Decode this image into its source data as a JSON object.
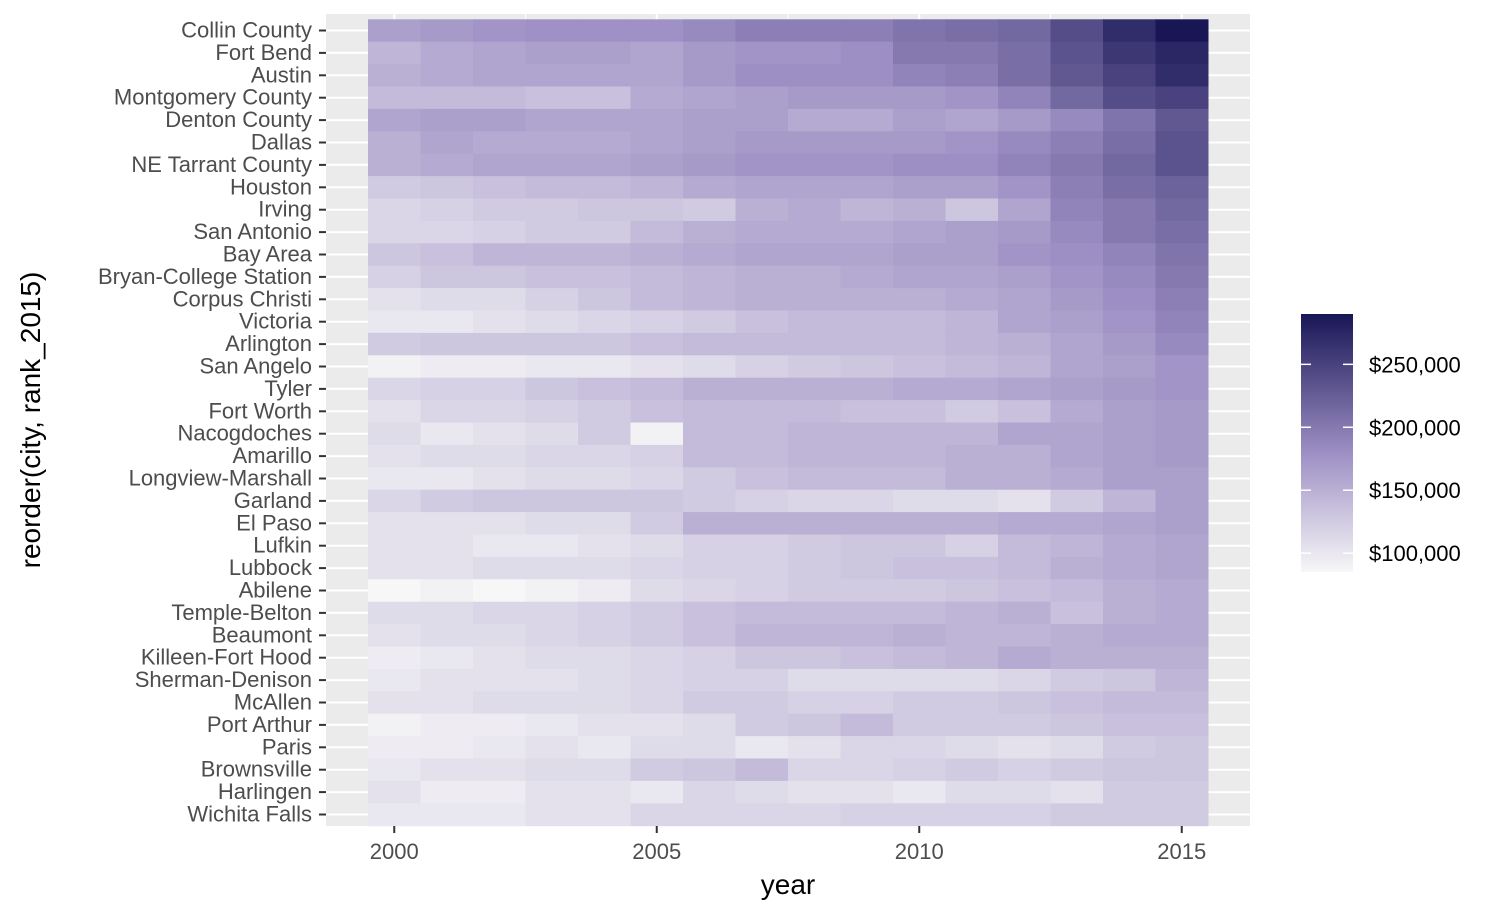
{
  "chart_data": {
    "type": "heatmap",
    "title": "",
    "xlabel": "year",
    "ylabel": "reorder(city, rank_2015)",
    "x": [
      2000,
      2001,
      2002,
      2003,
      2004,
      2005,
      2006,
      2007,
      2008,
      2009,
      2010,
      2011,
      2012,
      2013,
      2014,
      2015
    ],
    "x_ticks": [
      2000,
      2005,
      2010,
      2015
    ],
    "x_tick_labels": [
      "2000",
      "2005",
      "2010",
      "2015"
    ],
    "cities": [
      "Collin County",
      "Fort Bend",
      "Austin",
      "Montgomery County",
      "Denton County",
      "Dallas",
      "NE Tarrant County",
      "Houston",
      "Irving",
      "San Antonio",
      "Bay Area",
      "Bryan-College Station",
      "Corpus Christi",
      "Victoria",
      "Arlington",
      "San Angelo",
      "Tyler",
      "Fort Worth",
      "Nacogdoches",
      "Amarillo",
      "Longview-Marshall",
      "Garland",
      "El Paso",
      "Lufkin",
      "Lubbock",
      "Abilene",
      "Temple-Belton",
      "Beaumont",
      "Killeen-Fort Hood",
      "Sherman-Denison",
      "McAllen",
      "Port Arthur",
      "Paris",
      "Brownsville",
      "Harlingen",
      "Wichita Falls"
    ],
    "values": [
      [
        165,
        170,
        175,
        178,
        178,
        178,
        185,
        195,
        195,
        195,
        205,
        210,
        215,
        240,
        270,
        290
      ],
      [
        145,
        155,
        160,
        165,
        165,
        160,
        170,
        175,
        175,
        180,
        200,
        200,
        210,
        235,
        260,
        275
      ],
      [
        150,
        155,
        160,
        160,
        160,
        160,
        170,
        180,
        180,
        180,
        190,
        195,
        210,
        230,
        250,
        270
      ],
      [
        140,
        140,
        140,
        135,
        135,
        155,
        160,
        165,
        170,
        170,
        170,
        175,
        190,
        215,
        240,
        250
      ],
      [
        160,
        165,
        165,
        160,
        160,
        160,
        165,
        165,
        155,
        155,
        165,
        160,
        170,
        185,
        205,
        230
      ],
      [
        150,
        160,
        155,
        155,
        155,
        160,
        165,
        170,
        170,
        170,
        170,
        175,
        185,
        195,
        210,
        235
      ],
      [
        150,
        155,
        160,
        160,
        160,
        165,
        170,
        175,
        175,
        175,
        180,
        180,
        190,
        200,
        215,
        235
      ],
      [
        125,
        130,
        135,
        140,
        140,
        145,
        155,
        160,
        160,
        160,
        165,
        165,
        175,
        195,
        210,
        220
      ],
      [
        115,
        120,
        125,
        125,
        130,
        130,
        125,
        150,
        155,
        145,
        150,
        130,
        160,
        190,
        200,
        215
      ],
      [
        115,
        115,
        120,
        125,
        125,
        140,
        150,
        155,
        155,
        155,
        160,
        165,
        170,
        185,
        200,
        210
      ],
      [
        130,
        135,
        145,
        145,
        145,
        150,
        155,
        160,
        160,
        160,
        165,
        165,
        175,
        180,
        190,
        205
      ],
      [
        120,
        130,
        130,
        135,
        135,
        140,
        145,
        150,
        150,
        155,
        160,
        160,
        165,
        175,
        185,
        200
      ],
      [
        105,
        110,
        110,
        120,
        130,
        140,
        145,
        150,
        150,
        150,
        150,
        155,
        160,
        170,
        180,
        195
      ],
      [
        100,
        100,
        105,
        110,
        115,
        120,
        125,
        135,
        140,
        140,
        140,
        145,
        160,
        165,
        175,
        190
      ],
      [
        125,
        130,
        130,
        130,
        130,
        135,
        140,
        140,
        140,
        140,
        140,
        145,
        150,
        160,
        170,
        185
      ],
      [
        90,
        95,
        95,
        100,
        100,
        105,
        110,
        120,
        125,
        130,
        135,
        140,
        145,
        160,
        165,
        175
      ],
      [
        115,
        120,
        120,
        130,
        135,
        140,
        150,
        150,
        150,
        150,
        155,
        155,
        160,
        165,
        170,
        175
      ],
      [
        105,
        115,
        115,
        120,
        125,
        135,
        140,
        140,
        140,
        135,
        135,
        125,
        135,
        155,
        165,
        170
      ],
      [
        110,
        100,
        105,
        110,
        125,
        90,
        140,
        140,
        145,
        145,
        145,
        145,
        160,
        160,
        165,
        170
      ],
      [
        105,
        110,
        110,
        115,
        115,
        120,
        140,
        140,
        145,
        145,
        145,
        150,
        150,
        160,
        165,
        170
      ],
      [
        100,
        100,
        105,
        110,
        110,
        115,
        125,
        135,
        140,
        140,
        140,
        150,
        150,
        155,
        165,
        165
      ],
      [
        115,
        125,
        130,
        130,
        130,
        130,
        125,
        120,
        115,
        115,
        110,
        110,
        105,
        125,
        145,
        165
      ],
      [
        105,
        105,
        105,
        110,
        110,
        125,
        150,
        150,
        150,
        150,
        150,
        150,
        155,
        155,
        160,
        165
      ],
      [
        105,
        105,
        100,
        100,
        105,
        110,
        120,
        120,
        125,
        130,
        130,
        120,
        140,
        145,
        155,
        160
      ],
      [
        105,
        105,
        110,
        110,
        110,
        115,
        120,
        120,
        125,
        130,
        135,
        135,
        140,
        150,
        155,
        160
      ],
      [
        85,
        90,
        85,
        90,
        95,
        110,
        115,
        120,
        125,
        125,
        125,
        130,
        135,
        140,
        150,
        155
      ],
      [
        110,
        110,
        115,
        115,
        120,
        125,
        135,
        140,
        140,
        140,
        140,
        145,
        150,
        135,
        150,
        155
      ],
      [
        105,
        110,
        110,
        115,
        120,
        125,
        135,
        145,
        145,
        145,
        150,
        145,
        145,
        150,
        155,
        155
      ],
      [
        95,
        100,
        105,
        110,
        110,
        115,
        120,
        130,
        130,
        135,
        140,
        145,
        155,
        150,
        150,
        150
      ],
      [
        100,
        105,
        105,
        105,
        110,
        115,
        120,
        120,
        110,
        110,
        110,
        110,
        115,
        125,
        130,
        145
      ],
      [
        105,
        105,
        110,
        110,
        110,
        115,
        125,
        125,
        120,
        120,
        125,
        125,
        130,
        135,
        140,
        140
      ],
      [
        90,
        95,
        95,
        100,
        105,
        105,
        110,
        125,
        130,
        140,
        125,
        125,
        125,
        130,
        135,
        135
      ],
      [
        95,
        95,
        100,
        105,
        100,
        110,
        110,
        100,
        105,
        115,
        115,
        110,
        105,
        110,
        125,
        130
      ],
      [
        100,
        105,
        105,
        110,
        110,
        125,
        130,
        140,
        115,
        115,
        120,
        125,
        120,
        125,
        130,
        130
      ],
      [
        105,
        95,
        95,
        105,
        105,
        100,
        115,
        110,
        105,
        105,
        100,
        110,
        110,
        105,
        125,
        125
      ],
      [
        100,
        100,
        100,
        105,
        105,
        115,
        115,
        115,
        115,
        120,
        120,
        120,
        120,
        125,
        125,
        125
      ]
    ],
    "legend": {
      "position": "right",
      "breaks": [
        100000,
        150000,
        200000,
        250000
      ],
      "labels": [
        "$100,000",
        "$150,000",
        "$200,000",
        "$250,000"
      ],
      "low_color": "#f7f7f7",
      "mid_color": "#9d8fc4",
      "mid_value": 180,
      "high_color": "#191656",
      "low_value": 85,
      "high_value": 290
    },
    "grid": true,
    "panel_background": "#ebebeb",
    "grid_color": "#ffffff"
  }
}
